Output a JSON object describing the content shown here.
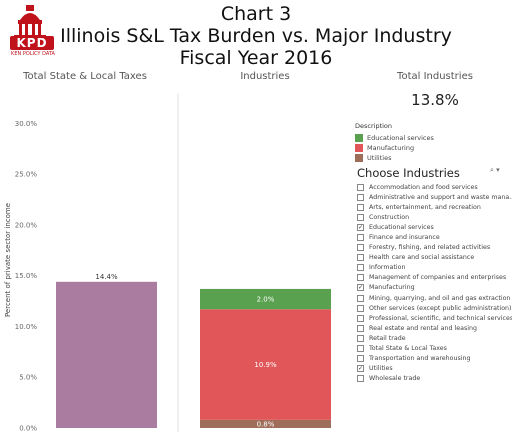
{
  "header": {
    "title_line1": "Chart 3",
    "title_line2": "Illinois S&L Tax Burden vs. Major Industry",
    "title_line3": "Fiscal Year 2016",
    "logo_text": "KPD",
    "logo_sub": "KEN POLICY DATA"
  },
  "panels": {
    "left_title": "Total State & Local Taxes",
    "middle_title": "Industries",
    "right_title": "Total Industries",
    "total_value": "13.8%"
  },
  "chart_data": {
    "type": "bar",
    "ylabel": "Percent of private sector income",
    "ylim": [
      0,
      33
    ],
    "yticks": [
      0,
      5,
      10,
      15,
      20,
      25,
      30
    ],
    "ytick_labels": [
      "0.0%",
      "5.0%",
      "10.0%",
      "15.0%",
      "20.0%",
      "25.0%",
      "30.0%"
    ],
    "bars": [
      {
        "panel": "Total State & Local Taxes",
        "value": 14.4,
        "label": "14.4%",
        "color": "#a97ca0"
      }
    ],
    "stacked": {
      "panel": "Industries",
      "segments": [
        {
          "name": "Utilities",
          "value": 0.8,
          "label": "0.8%",
          "color": "#9e6e5b"
        },
        {
          "name": "Manufacturing",
          "value": 10.9,
          "label": "10.9%",
          "color": "#e15759"
        },
        {
          "name": "Educational services",
          "value": 2.0,
          "label": "2.0%",
          "color": "#59a14f"
        }
      ]
    },
    "grid": false
  },
  "legend": {
    "title": "Description",
    "items": [
      {
        "label": "Educational services",
        "color": "#59a14f"
      },
      {
        "label": "Manufacturing",
        "color": "#e15759"
      },
      {
        "label": "Utilities",
        "color": "#9e6e5b"
      }
    ]
  },
  "filter": {
    "title": "Choose Industries",
    "search_icon": "search-icon",
    "items": [
      {
        "label": "Accommodation and food services",
        "checked": false
      },
      {
        "label": "Administrative and support and waste mana...",
        "checked": false
      },
      {
        "label": "Arts, entertainment, and recreation",
        "checked": false
      },
      {
        "label": "Construction",
        "checked": false
      },
      {
        "label": "Educational services",
        "checked": true
      },
      {
        "label": "Finance and insurance",
        "checked": false
      },
      {
        "label": "Forestry, fishing, and related activities",
        "checked": false
      },
      {
        "label": "Health care and social assistance",
        "checked": false
      },
      {
        "label": "Information",
        "checked": false
      },
      {
        "label": "Management of companies and enterprises",
        "checked": false
      },
      {
        "label": "Manufacturing",
        "checked": true
      },
      {
        "label": "Mining, quarrying, and oil and gas extraction",
        "checked": false
      },
      {
        "label": "Other services (except public administration)",
        "checked": false
      },
      {
        "label": "Professional, scientific, and technical services",
        "checked": false
      },
      {
        "label": "Real estate and rental and leasing",
        "checked": false
      },
      {
        "label": "Retail trade",
        "checked": false
      },
      {
        "label": "Total State & Local Taxes",
        "checked": false
      },
      {
        "label": "Transportation and warehousing",
        "checked": false
      },
      {
        "label": "Utilities",
        "checked": true
      },
      {
        "label": "Wholesale trade",
        "checked": false
      }
    ]
  }
}
